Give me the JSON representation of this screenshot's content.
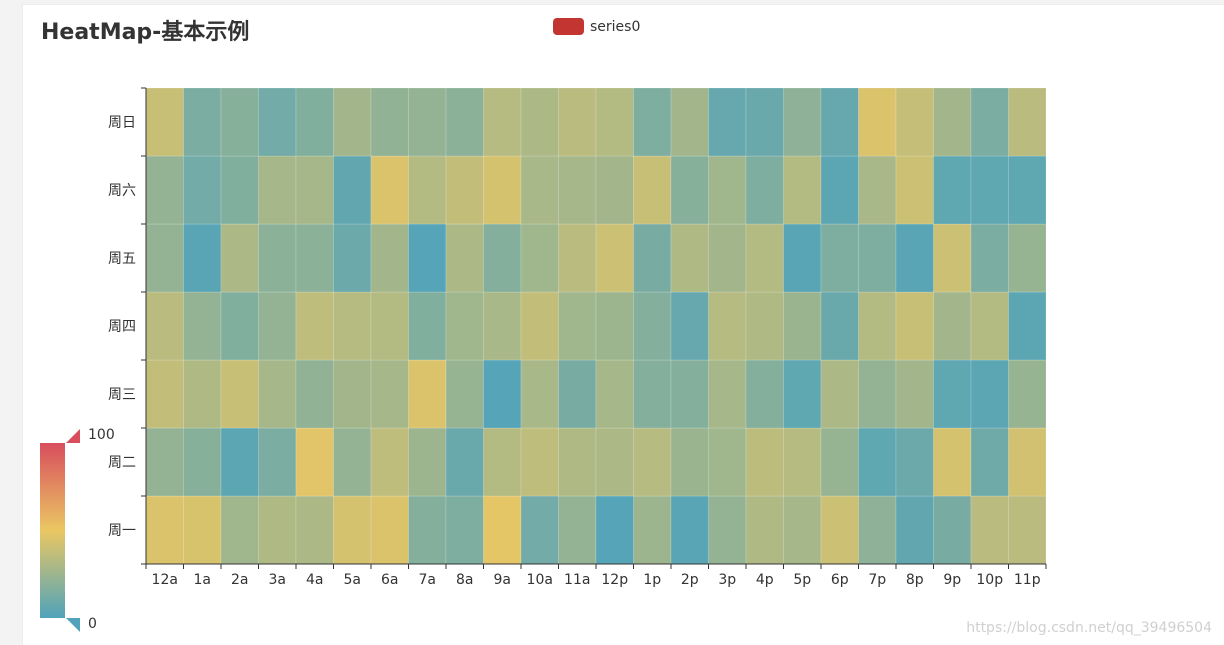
{
  "title": "HeatMap-基本示例",
  "watermark": "https://blog.csdn.net/qq_39496504",
  "chart_data": {
    "type": "heatmap",
    "title": "HeatMap-基本示例",
    "legend": [
      {
        "name": "series0",
        "color": "#c23531"
      }
    ],
    "x_categories": [
      "12a",
      "1a",
      "2a",
      "3a",
      "4a",
      "5a",
      "6a",
      "7a",
      "8a",
      "9a",
      "10a",
      "11a",
      "12p",
      "1p",
      "2p",
      "3p",
      "4p",
      "5p",
      "6p",
      "7p",
      "8p",
      "9p",
      "10p",
      "11p"
    ],
    "y_categories": [
      "周一",
      "周二",
      "周三",
      "周四",
      "周五",
      "周六",
      "周日"
    ],
    "visual_map": {
      "min": 0,
      "max": 100,
      "min_label": "0",
      "max_label": "100",
      "colors": [
        "#50a3ba",
        "#eac763",
        "#d94e5d"
      ]
    },
    "values": [
      [
        45,
        44,
        26,
        31,
        30,
        43,
        45,
        17,
        15,
        48,
        11,
        22,
        2,
        25,
        3,
        22,
        31,
        28,
        40,
        20,
        6,
        13,
        34,
        34
      ],
      [
        22,
        18,
        4,
        14,
        47,
        22,
        36,
        25,
        8,
        32,
        36,
        31,
        30,
        33,
        24,
        26,
        35,
        33,
        23,
        5,
        9,
        43,
        10,
        42
      ],
      [
        37,
        31,
        39,
        28,
        21,
        27,
        28,
        45,
        23,
        2,
        29,
        13,
        28,
        17,
        17,
        28,
        17,
        5,
        30,
        22,
        27,
        5,
        4,
        23
      ],
      [
        34,
        22,
        16,
        22,
        36,
        33,
        32,
        16,
        26,
        29,
        37,
        26,
        25,
        17,
        7,
        33,
        31,
        24,
        8,
        32,
        39,
        27,
        32,
        4
      ],
      [
        22,
        3,
        30,
        19,
        19,
        9,
        27,
        2,
        30,
        17,
        26,
        34,
        40,
        13,
        31,
        27,
        32,
        3,
        15,
        15,
        3,
        40,
        14,
        23
      ],
      [
        22,
        11,
        16,
        28,
        28,
        6,
        45,
        32,
        37,
        43,
        29,
        28,
        27,
        39,
        18,
        26,
        15,
        32,
        4,
        29,
        40,
        5,
        5,
        5
      ],
      [
        39,
        14,
        18,
        11,
        16,
        27,
        21,
        22,
        19,
        33,
        30,
        34,
        32,
        15,
        27,
        7,
        8,
        20,
        7,
        45,
        38,
        27,
        14,
        34
      ]
    ]
  }
}
